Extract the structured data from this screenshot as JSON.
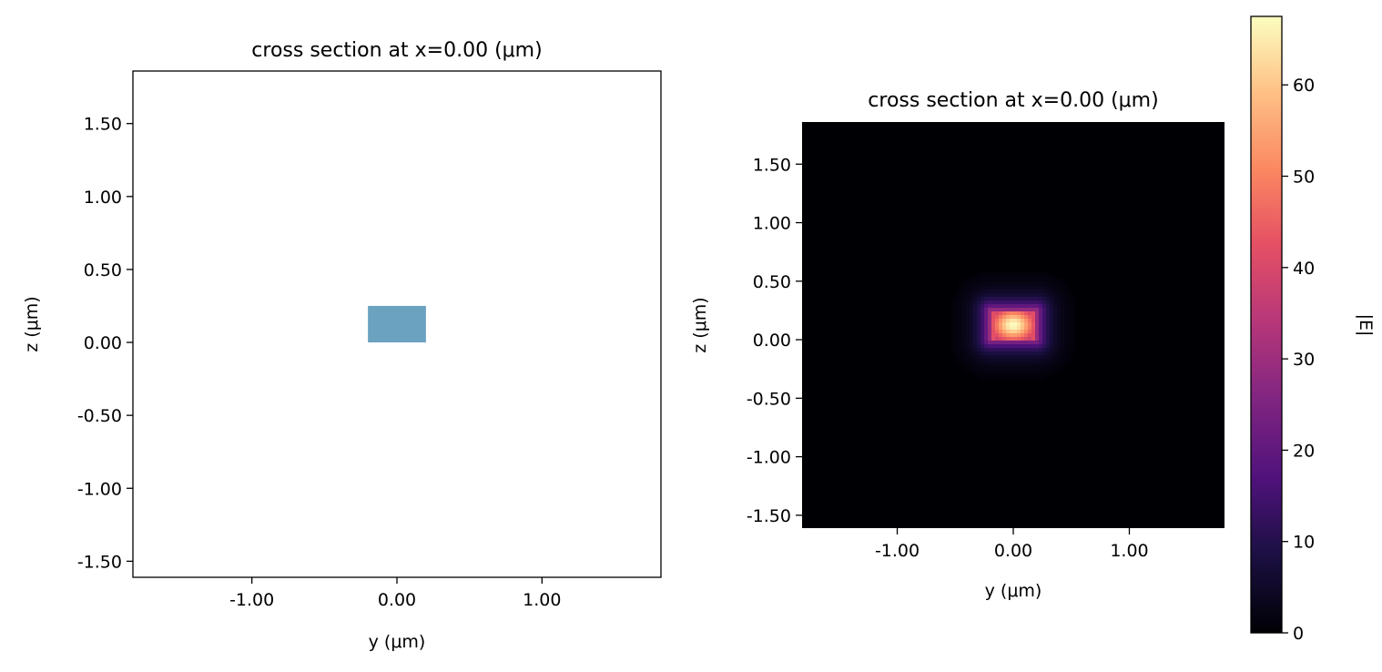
{
  "chart_data": [
    {
      "type": "geometry-cross-section",
      "title": "cross section at x=0.00 (μm)",
      "xlabel": "y (μm)",
      "ylabel": "z (μm)",
      "xlim": [
        -1.82,
        1.82
      ],
      "ylim": [
        -1.61,
        1.86
      ],
      "xticks": [
        -1.0,
        0.0,
        1.0
      ],
      "xtick_labels": [
        "-1.00",
        "0.00",
        "1.00"
      ],
      "yticks": [
        -1.5,
        -1.0,
        -0.5,
        0.0,
        0.5,
        1.0,
        1.5
      ],
      "ytick_labels": [
        "-1.50",
        "-1.00",
        "-0.50",
        "0.00",
        "0.50",
        "1.00",
        "1.50"
      ],
      "structures": [
        {
          "y_min": -0.2,
          "y_max": 0.2,
          "z_min": 0.0,
          "z_max": 0.25,
          "color": "#6aa2c0"
        }
      ]
    },
    {
      "type": "heatmap",
      "title": "cross section at x=0.00 (μm)",
      "xlabel": "y (μm)",
      "ylabel": "z (μm)",
      "xlim": [
        -1.82,
        1.82
      ],
      "ylim": [
        -1.61,
        1.86
      ],
      "xticks": [
        -1.0,
        0.0,
        1.0
      ],
      "xtick_labels": [
        "-1.00",
        "0.00",
        "1.00"
      ],
      "yticks": [
        -1.5,
        -1.0,
        -0.5,
        0.0,
        0.5,
        1.0,
        1.5
      ],
      "ytick_labels": [
        "-1.50",
        "-1.00",
        "-0.50",
        "0.00",
        "0.50",
        "1.00",
        "1.50"
      ],
      "colormap": "magma",
      "colorbar_label": "|E|",
      "colorbar_range": [
        0,
        67.5
      ],
      "colorbar_ticks": [
        0,
        10,
        20,
        30,
        40,
        50,
        60
      ],
      "colorbar_tick_labels": [
        "0",
        "10",
        "20",
        "30",
        "40",
        "50",
        "60"
      ],
      "field": {
        "peak_value": 67.5,
        "peak_y": 0.0,
        "peak_z": 0.12,
        "core_y_half_width": 0.2,
        "core_z_range": [
          0.0,
          0.25
        ],
        "decay_length": 0.09
      }
    }
  ]
}
